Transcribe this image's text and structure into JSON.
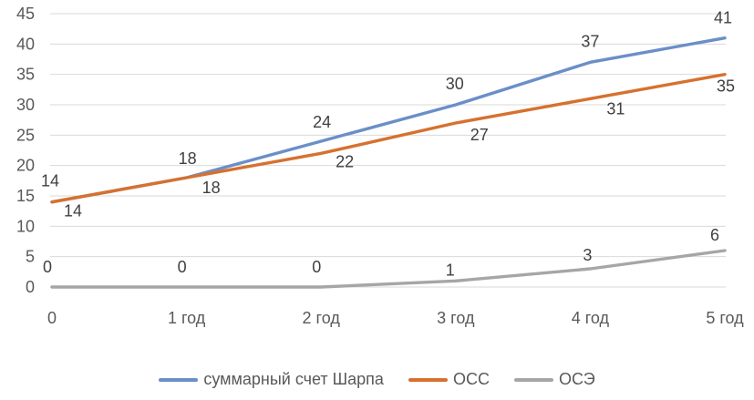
{
  "chart_data": {
    "type": "line",
    "title": "",
    "xlabel": "",
    "ylabel": "",
    "categories": [
      "0",
      "1 год",
      "2 год",
      "3 год",
      "4 год",
      "5 год"
    ],
    "y_ticks": [
      0,
      5,
      10,
      15,
      20,
      25,
      30,
      35,
      40,
      45
    ],
    "ylim": [
      0,
      45
    ],
    "grid": "horizontal",
    "legend_position": "bottom",
    "gridline_color": "#d9d9d9",
    "axis_text_color": "#595959",
    "data_label_color": "#404040",
    "series": [
      {
        "id": "sharpe-total",
        "name": "суммарный счет Шарпа",
        "color": "#6a8fc8",
        "values": [
          14,
          18,
          24,
          30,
          37,
          41
        ],
        "label_offsets": [
          [
            -2,
            -17
          ],
          [
            1,
            -15
          ],
          [
            1,
            -15
          ],
          [
            -1,
            -17
          ],
          [
            0,
            -17
          ],
          [
            -2,
            -16
          ]
        ]
      },
      {
        "id": "oss",
        "name": "ОСС",
        "color": "#d6712e",
        "values": [
          14,
          18,
          22,
          27,
          31,
          35
        ],
        "label_offsets": [
          [
            23,
            16
          ],
          [
            27,
            17
          ],
          [
            26,
            15
          ],
          [
            26,
            19
          ],
          [
            28,
            17
          ],
          [
            1,
            19
          ]
        ]
      },
      {
        "id": "ose",
        "name": "ОСЭ",
        "color": "#a6a6a6",
        "values": [
          0,
          0,
          0,
          1,
          3,
          6
        ],
        "label_offsets": [
          [
            -5,
            -16
          ],
          [
            -5,
            -16
          ],
          [
            -5,
            -16
          ],
          [
            -6,
            -6
          ],
          [
            -3,
            -9
          ],
          [
            -11,
            -11
          ]
        ]
      }
    ]
  }
}
